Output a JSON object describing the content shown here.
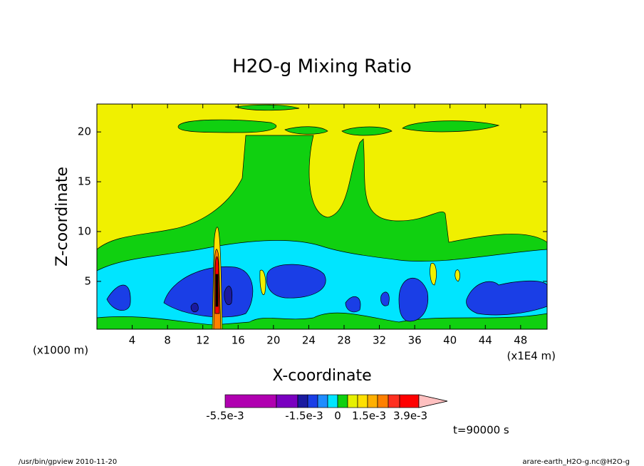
{
  "chart_data": {
    "type": "contour",
    "title": "H2O-g Mixing Ratio",
    "x_label": "X-coordinate",
    "y_label": "Z-coordinate",
    "x_unit": "(x1000 m)",
    "x_scale_note": "(x1E4 m)",
    "xlim": [
      0,
      51
    ],
    "xticks": [
      4,
      8,
      12,
      16,
      20,
      24,
      28,
      32,
      36,
      40,
      44,
      48
    ],
    "ylim": [
      0.2,
      22.8
    ],
    "yticks": [
      5,
      10,
      15,
      20
    ],
    "colorbar": {
      "colors": [
        "#b000b0",
        "#7a00c0",
        "#1a1aa0",
        "#1a3ee6",
        "#1f8cff",
        "#00e5ff",
        "#10d010",
        "#e6f000",
        "#ffe000",
        "#ffb000",
        "#ff8000",
        "#ff3020",
        "#ff0000",
        "#ff7878",
        "#ffc0c0"
      ],
      "labels": [
        "-5.5e-3",
        "-1.5e-3",
        "0",
        "1.5e-3",
        "3.9e-3"
      ]
    },
    "time_label": "t=90000 s",
    "footer_left": "/usr/bin/gpview  2010-11-20",
    "footer_right": "arare-earth_H2O-g.nc@H2O-g"
  }
}
